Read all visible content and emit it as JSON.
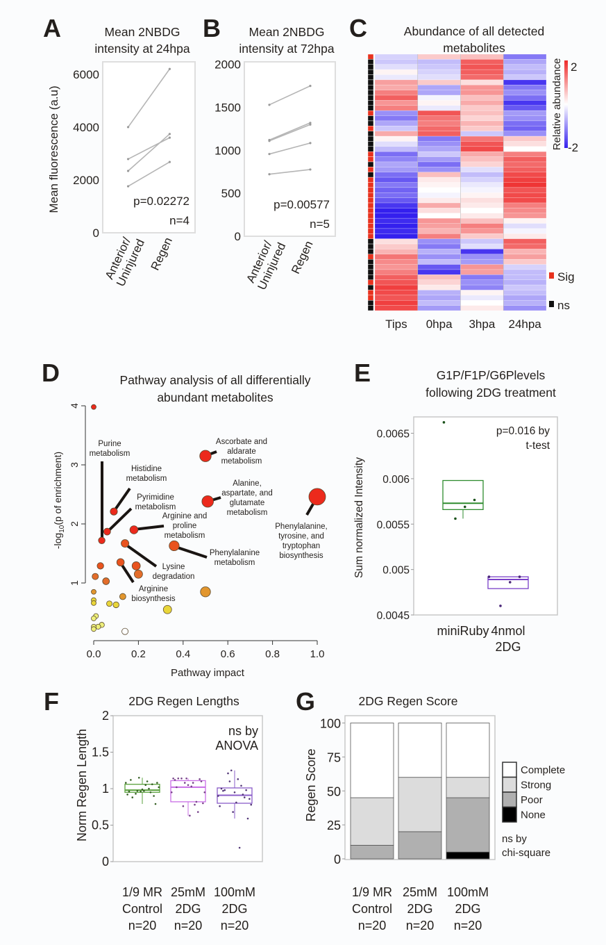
{
  "panel_labels": {
    "a": "A",
    "b": "B",
    "c": "C",
    "d": "D",
    "e": "E",
    "f": "F",
    "g": "G"
  },
  "chart_data": [
    {
      "panel": "A",
      "type": "line",
      "title": [
        "Mean 2NBDG",
        "intensity at 24hpa"
      ],
      "ylabel": "Mean fluorescence (a.u)",
      "categories": [
        [
          "Anterior/",
          "Uninjured"
        ],
        [
          "Regen"
        ]
      ],
      "yticks": [
        0,
        2000,
        4000,
        6000
      ],
      "ylim": [
        0,
        6470
      ],
      "pairs": [
        [
          4000,
          6200
        ],
        [
          2790,
          3600
        ],
        [
          2340,
          3740
        ],
        [
          1760,
          2680
        ]
      ],
      "annotation": [
        "p=0.02272",
        "n=4"
      ],
      "line_color": "#b5b5b5"
    },
    {
      "panel": "B",
      "type": "line",
      "title": [
        "Mean 2NBDG",
        "intensity at 72hpa"
      ],
      "categories": [
        [
          "Anterior/",
          "Uninjured"
        ],
        [
          "Regen"
        ]
      ],
      "yticks": [
        0,
        500,
        1000,
        1500,
        2000
      ],
      "ylim": [
        0,
        2030
      ],
      "pairs": [
        [
          1530,
          1750
        ],
        [
          1120,
          1320
        ],
        [
          1110,
          1300
        ],
        [
          957,
          1085
        ],
        [
          722,
          777
        ]
      ],
      "annotation": [
        "p=0.00577",
        "n=5"
      ],
      "line_color": "#b5b5b5"
    },
    {
      "panel": "C",
      "type": "heatmap",
      "title": [
        "Abundance of all detected",
        "metabolites"
      ],
      "columns": [
        "Tips",
        "0hpa",
        "3hpa",
        "24hpa"
      ],
      "colorbar": {
        "label": "Relative abundance",
        "max_label": "2",
        "min_label": "-2",
        "range": [
          -2,
          2
        ],
        "high_color": "#ee2a2a",
        "low_color": "#3420ee"
      },
      "legend": [
        {
          "label": "Sig",
          "color": "#e8321e"
        },
        {
          "label": "ns",
          "color": "#111111"
        }
      ],
      "sig": [
        1,
        0,
        0,
        0,
        0,
        0,
        0,
        0,
        0,
        0,
        0,
        1,
        0,
        0,
        1,
        0,
        0,
        0,
        0,
        1,
        1,
        0,
        1,
        0,
        1,
        1,
        1,
        1,
        1,
        1,
        1,
        1,
        1,
        1,
        1,
        1,
        0,
        0,
        0,
        1,
        0,
        0,
        0,
        0,
        1,
        0,
        1,
        1,
        0,
        0
      ],
      "values": [
        [
          -0.4,
          0.5,
          0.6,
          -1.2
        ],
        [
          -0.5,
          -0.6,
          1.5,
          -0.8
        ],
        [
          -0.3,
          -0.5,
          1.6,
          -0.6
        ],
        [
          0.1,
          -0.4,
          1.5,
          -0.7
        ],
        [
          -0.2,
          -0.3,
          1.4,
          -0.5
        ],
        [
          0.9,
          0.5,
          0.3,
          -1.8
        ],
        [
          0.8,
          -0.8,
          1.0,
          -1.2
        ],
        [
          1.2,
          -0.8,
          1.0,
          -1.0
        ],
        [
          1.5,
          -0.1,
          0.6,
          -1.3
        ],
        [
          1.0,
          0.1,
          0.8,
          -1.8
        ],
        [
          1.2,
          -0.2,
          0.5,
          -1.5
        ],
        [
          -1.0,
          1.6,
          0.6,
          -0.9
        ],
        [
          -1.2,
          1.3,
          0.4,
          -1.0
        ],
        [
          -0.8,
          1.2,
          0.7,
          -1.3
        ],
        [
          -0.5,
          1.4,
          0.5,
          -1.4
        ],
        [
          0.8,
          1.5,
          -0.5,
          -1.0
        ],
        [
          0.1,
          -1.2,
          1.3,
          0.5
        ],
        [
          -0.3,
          -1.0,
          1.6,
          0.3
        ],
        [
          -0.6,
          -0.8,
          1.7,
          0.0
        ],
        [
          -1.3,
          -0.5,
          0.8,
          1.2
        ],
        [
          -1.1,
          -0.9,
          0.6,
          1.5
        ],
        [
          -0.8,
          -1.3,
          0.4,
          1.4
        ],
        [
          -0.9,
          -1.0,
          -0.3,
          1.5
        ],
        [
          -1.3,
          0.6,
          -0.6,
          1.7
        ],
        [
          -1.5,
          0.2,
          -0.4,
          1.8
        ],
        [
          -1.2,
          0.1,
          -0.2,
          1.9
        ],
        [
          -1.4,
          0.0,
          -0.1,
          1.6
        ],
        [
          -1.3,
          -0.1,
          0.1,
          1.7
        ],
        [
          -1.5,
          0.2,
          0.3,
          1.7
        ],
        [
          -1.8,
          0.8,
          0.2,
          1.2
        ],
        [
          -2.0,
          0.3,
          0.0,
          1.1
        ],
        [
          -2.0,
          0.0,
          0.2,
          1.0
        ],
        [
          -1.9,
          1.0,
          0.6,
          0.1
        ],
        [
          -2.0,
          0.9,
          1.2,
          -0.3
        ],
        [
          -1.9,
          0.7,
          1.0,
          -0.1
        ],
        [
          -2.0,
          1.2,
          0.5,
          0.2
        ],
        [
          0.3,
          -1.0,
          -0.5,
          1.5
        ],
        [
          0.5,
          -1.2,
          -0.3,
          1.4
        ],
        [
          0.7,
          -0.7,
          -1.8,
          0.7
        ],
        [
          1.3,
          -1.0,
          -1.0,
          0.9
        ],
        [
          1.1,
          -0.6,
          -0.9,
          0.5
        ],
        [
          1.0,
          -1.5,
          1.0,
          -0.4
        ],
        [
          1.2,
          -1.8,
          0.9,
          -0.6
        ],
        [
          1.5,
          0.6,
          -1.2,
          -0.6
        ],
        [
          1.6,
          0.4,
          -1.0,
          -0.7
        ],
        [
          1.8,
          0.2,
          -1.1,
          -0.5
        ],
        [
          1.7,
          -0.7,
          0.1,
          -0.6
        ],
        [
          1.6,
          -0.8,
          -0.2,
          -0.8
        ],
        [
          1.8,
          -0.6,
          0.0,
          -0.7
        ],
        [
          1.7,
          -0.9,
          0.2,
          -1.0
        ]
      ]
    },
    {
      "panel": "D",
      "type": "scatter",
      "title": [
        "Pathway analysis of all differentially",
        "abundant metabolites"
      ],
      "xlabel": "Pathway impact",
      "ylabel_prefix": "-log",
      "ylabel_sub": "10",
      "ylabel_suffix": "(p of enrichment)",
      "xlim": [
        0,
        1.0
      ],
      "xticks": [
        "0.0",
        "0.2",
        "0.4",
        "0.6",
        "0.8",
        "1.0"
      ],
      "yticks": [
        "1",
        "2",
        "3",
        "4"
      ],
      "points": [
        [
          0.0,
          3.98
        ],
        [
          0.5,
          3.15
        ],
        [
          0.51,
          2.38
        ],
        [
          1.0,
          2.46
        ],
        [
          0.09,
          2.21
        ],
        [
          0.06,
          1.87
        ],
        [
          0.036,
          1.72
        ],
        [
          0.18,
          1.9
        ],
        [
          0.14,
          1.67
        ],
        [
          0.36,
          1.63
        ],
        [
          0.12,
          1.35
        ],
        [
          0.03,
          1.29
        ],
        [
          0.19,
          1.29
        ],
        [
          0.2,
          1.15
        ],
        [
          0.007,
          1.11
        ],
        [
          0.055,
          1.03
        ],
        [
          0.5,
          0.85
        ],
        [
          0.0,
          0.85
        ],
        [
          0.13,
          0.77
        ],
        [
          0.0,
          0.71
        ],
        [
          0.0,
          0.66
        ],
        [
          0.07,
          0.65
        ],
        [
          0.1,
          0.63
        ],
        [
          0.33,
          0.55
        ],
        [
          0.01,
          0.44
        ],
        [
          0.0,
          0.4
        ],
        [
          0.036,
          0.29
        ],
        [
          0.02,
          0.26
        ],
        [
          0.0,
          0.26
        ],
        [
          0.0,
          0.22
        ],
        [
          0.14,
          0.18
        ]
      ],
      "annotations": [
        {
          "point": 6,
          "lines": [
            "Purine",
            "metabolism"
          ]
        },
        {
          "point": 4,
          "lines": [
            "Histidine",
            "metabolism"
          ]
        },
        {
          "point": 5,
          "lines": [
            "Pyrimidine",
            "metabolism"
          ]
        },
        {
          "point": 7,
          "lines": [
            "Arginine and",
            "proline",
            "metabolism"
          ]
        },
        {
          "point": 8,
          "lines": [
            "Lysine",
            "degradation"
          ]
        },
        {
          "point": 10,
          "lines": [
            "Arginine",
            "biosynthesis"
          ]
        },
        {
          "point": 9,
          "lines": [
            "Phenylalanine",
            "metabolism"
          ]
        },
        {
          "point": 1,
          "lines": [
            "Ascorbate and",
            "aldarate",
            "metabolism"
          ]
        },
        {
          "point": 2,
          "lines": [
            "Alanine,",
            "aspartate, and",
            "glutamate",
            "metabolism"
          ]
        },
        {
          "point": 3,
          "lines": [
            "Phenylalanine,",
            "tyrosine, and",
            "tryptophan",
            "biosynthesis"
          ]
        }
      ]
    },
    {
      "panel": "E",
      "type": "box",
      "title": [
        "G1P/F1P/G6Plevels",
        "following 2DG treatment"
      ],
      "ylabel": "Sum normalized Intensity",
      "categories": [
        [
          "miniRuby"
        ],
        [
          "4nmol",
          "2DG"
        ]
      ],
      "yticks": [
        "0.0045",
        "0.005",
        "0.0055",
        "0.006",
        "0.0065"
      ],
      "ylim": [
        0.0045,
        0.00668
      ],
      "annotation": [
        "p=0.016 by",
        "t-test"
      ],
      "groups": [
        {
          "color": "#2e8b2e",
          "q1": 0.00566,
          "median": 0.00573,
          "q3": 0.00598,
          "whisker_low": 0.00556,
          "whisker_high": 0.00598,
          "points": [
            0.00662,
            0.005766,
            0.00569,
            0.00556
          ]
        },
        {
          "color": "#7a3fc8",
          "q1": 0.00479,
          "median": 0.00489,
          "q3": 0.00492,
          "whisker_low": 0.00479,
          "whisker_high": 0.00492,
          "points": [
            0.00492,
            0.00492,
            0.00486,
            0.0046
          ]
        }
      ]
    },
    {
      "panel": "F",
      "type": "box",
      "title": [
        "2DG Regen Lengths"
      ],
      "ylabel": "Norm Regen Length",
      "categories": [
        [
          "1/9 MR",
          "Control",
          "n=20"
        ],
        [
          "25mM",
          "2DG",
          "n=20"
        ],
        [
          "100mM",
          "2DG",
          "n=20"
        ]
      ],
      "yticks": [
        "0",
        "0.5",
        "1",
        "1.5",
        "2"
      ],
      "ylim": [
        0,
        2
      ],
      "annotation": [
        "ns by",
        "ANOVA"
      ],
      "groups": [
        {
          "color": "#5aa03c",
          "q1": 0.95,
          "median": 0.98,
          "q3": 1.06,
          "whisker_low": 0.79,
          "whisker_high": 1.15,
          "points": [
            1.08,
            1.06,
            0.97,
            0.93,
            0.92,
            0.9,
            1.05,
            0.97,
            0.96,
            0.79,
            1.1,
            1.15,
            1.12,
            1.08,
            1.0,
            0.96,
            0.88,
            1.02,
            0.95,
            0.99
          ]
        },
        {
          "color": "#c86ee6",
          "q1": 0.82,
          "median": 1.02,
          "q3": 1.11,
          "whisker_low": 0.63,
          "whisker_high": 1.14,
          "points": [
            0.95,
            0.68,
            0.63,
            1.14,
            1.14,
            1.13,
            1.03,
            0.76,
            1.12,
            1.1,
            1.08,
            1.08,
            1.02,
            0.8,
            0.78,
            1.14,
            1.14,
            0.95,
            0.82,
            1.05
          ]
        },
        {
          "color": "#8a5cc8",
          "q1": 0.8,
          "median": 0.91,
          "q3": 1.01,
          "whisker_low": 0.59,
          "whisker_high": 1.25,
          "points": [
            0.9,
            0.88,
            0.81,
            1.21,
            0.76,
            0.98,
            1.13,
            1.1,
            1.0,
            0.59,
            0.19,
            1.25,
            0.97,
            0.86,
            1.04,
            0.68,
            0.98,
            0.78,
            0.92,
            0.95
          ]
        }
      ]
    },
    {
      "panel": "G",
      "type": "bar",
      "stacked": true,
      "title": [
        "2DG Regen Score"
      ],
      "ylabel": "Regen Score",
      "categories": [
        [
          "1/9 MR",
          "Control",
          "n=20"
        ],
        [
          "25mM",
          "2DG",
          "n=20"
        ],
        [
          "100mM",
          "2DG",
          "n=20"
        ]
      ],
      "yticks": [
        "0",
        "25",
        "50",
        "75",
        "100"
      ],
      "ylim": [
        0,
        105
      ],
      "annotation": [
        "ns by",
        "chi-square"
      ],
      "series": [
        {
          "name": "None",
          "color": "#000000",
          "values": [
            0,
            0,
            5
          ]
        },
        {
          "name": "Poor",
          "color": "#b0b0b0",
          "values": [
            10,
            20,
            40
          ]
        },
        {
          "name": "Strong",
          "color": "#dcdcdc",
          "values": [
            35,
            40,
            15
          ]
        },
        {
          "name": "Complete",
          "color": "#ffffff",
          "values": [
            55,
            40,
            40
          ]
        }
      ],
      "legend_order": [
        "Complete",
        "Strong",
        "Poor",
        "None"
      ]
    }
  ]
}
